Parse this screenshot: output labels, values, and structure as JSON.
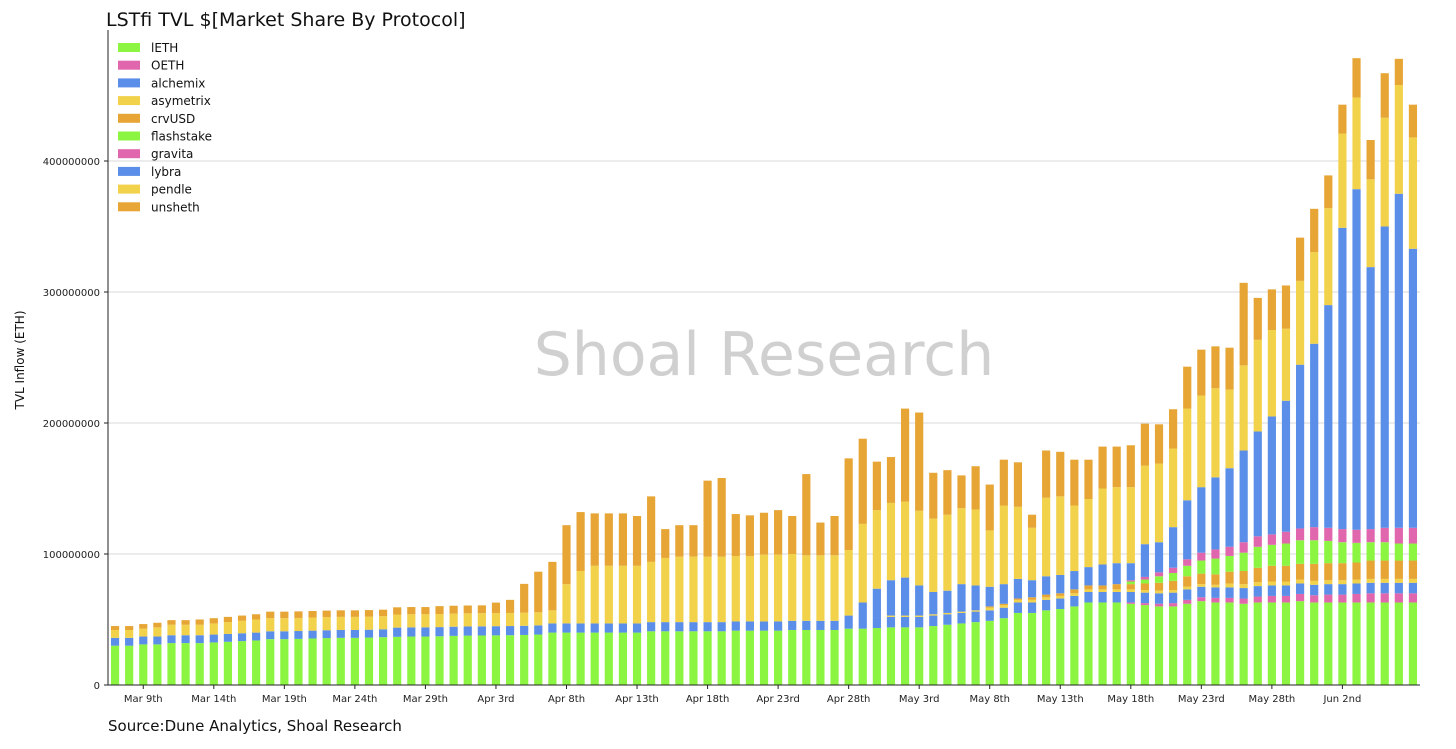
{
  "chart_data": {
    "type": "bar",
    "stacked": true,
    "title": "LSTfi TVL $[Market Share By Protocol]",
    "xlabel": "",
    "ylabel": "TVL Inflow (ETH)",
    "ylim": [
      0,
      500000000
    ],
    "yticks": [
      0,
      100000000,
      200000000,
      300000000,
      400000000
    ],
    "ytick_labels": [
      "0",
      "100000000",
      "200000000",
      "300000000",
      "400000000"
    ],
    "xtick_labels": [
      "Mar 9th",
      "Mar 14th",
      "Mar 19th",
      "Mar 24th",
      "Mar 29th",
      "Apr 3rd",
      "Apr 8th",
      "Apr 13th",
      "Apr 18th",
      "Apr 23rd",
      "Apr 28th",
      "May 3rd",
      "May 8th",
      "May 13th",
      "May 18th",
      "May 23rd",
      "May 28th",
      "Jun 2nd"
    ],
    "xtick_positions": [
      2,
      7,
      12,
      17,
      22,
      27,
      32,
      37,
      42,
      47,
      52,
      57,
      62,
      67,
      72,
      77,
      82,
      87
    ],
    "grid": "horizontal",
    "legend_position": "top-left",
    "watermark": "Shoal Research",
    "source": "Source:Dune Analytics, Shoal Research",
    "legend": [
      {
        "name": "lETH",
        "color": "#8cf542"
      },
      {
        "name": "OETH",
        "color": "#e066ad"
      },
      {
        "name": "alchemix",
        "color": "#5b8ee8"
      },
      {
        "name": "asymetrix",
        "color": "#f2d24b"
      },
      {
        "name": "crvUSD",
        "color": "#e6a535"
      },
      {
        "name": "flashstake",
        "color": "#8cf542"
      },
      {
        "name": "gravita",
        "color": "#e066ad"
      },
      {
        "name": "lybra",
        "color": "#5b8ee8"
      },
      {
        "name": "pendle",
        "color": "#f2d24b"
      },
      {
        "name": "unsheth",
        "color": "#e6a535"
      }
    ],
    "series": [
      {
        "name": "lETH",
        "color": "#8cf542",
        "values": [
          30000000,
          30000000,
          31000000,
          31000000,
          32000000,
          32000000,
          32000000,
          32500000,
          33000000,
          33500000,
          34000000,
          35000000,
          35000000,
          35200000,
          35500000,
          35800000,
          36000000,
          36000000,
          36200000,
          36500000,
          36800000,
          37000000,
          37000000,
          37200000,
          37500000,
          37700000,
          37800000,
          37900000,
          38000000,
          38200000,
          38500000,
          40000000,
          40000000,
          40000000,
          40000000,
          40000000,
          40000000,
          40000000,
          41000000,
          41000000,
          41000000,
          41000000,
          41000000,
          41000000,
          41500000,
          41500000,
          41500000,
          41500000,
          42000000,
          42000000,
          42000000,
          42000000,
          43000000,
          43000000,
          43500000,
          44000000,
          44000000,
          44000000,
          45000000,
          46000000,
          47000000,
          48000000,
          49000000,
          51000000,
          55000000,
          55000000,
          57000000,
          58000000,
          60000000,
          63000000,
          63000000,
          63000000,
          62000000,
          61000000,
          60000000,
          60000000,
          62000000,
          64000000,
          63000000,
          63000000,
          62000000,
          63000000,
          63000000,
          63000000,
          64000000,
          63000000,
          63000000,
          63000000,
          63000000,
          63000000,
          63000000,
          63000000,
          63000000
        ]
      },
      {
        "name": "OETH",
        "color": "#e066ad",
        "values": [
          0,
          0,
          0,
          0,
          0,
          0,
          0,
          0,
          0,
          0,
          0,
          0,
          0,
          0,
          0,
          0,
          0,
          0,
          0,
          0,
          0,
          0,
          0,
          0,
          0,
          0,
          0,
          0,
          0,
          0,
          0,
          0,
          0,
          0,
          0,
          0,
          0,
          0,
          0,
          0,
          0,
          0,
          0,
          0,
          0,
          0,
          0,
          0,
          0,
          0,
          0,
          0,
          0,
          0,
          0,
          0,
          0,
          0,
          0,
          0,
          0,
          0,
          0,
          0,
          0,
          0,
          0,
          0,
          0,
          0,
          0,
          0,
          1000000,
          1500000,
          2000000,
          2500000,
          3000000,
          3000000,
          3500000,
          3500000,
          4000000,
          4500000,
          5000000,
          5000000,
          5500000,
          5500000,
          6000000,
          6000000,
          6500000,
          7000000,
          7000000,
          7000000,
          7000000
        ]
      },
      {
        "name": "alchemix",
        "color": "#5b8ee8",
        "values": [
          6000000,
          6000000,
          6000000,
          6000000,
          6000000,
          6000000,
          6000000,
          6000000,
          6000000,
          6000000,
          6000000,
          6000000,
          6000000,
          6000000,
          6000000,
          6000000,
          6000000,
          6000000,
          6000000,
          6000000,
          7000000,
          7000000,
          7000000,
          7000000,
          7000000,
          7000000,
          7000000,
          7000000,
          7000000,
          7000000,
          7000000,
          7000000,
          7000000,
          7000000,
          7000000,
          7000000,
          7000000,
          7000000,
          7000000,
          7000000,
          7000000,
          7000000,
          7000000,
          7000000,
          7000000,
          7000000,
          7000000,
          7000000,
          7000000,
          7000000,
          7000000,
          7000000,
          7000000,
          7000000,
          8000000,
          8000000,
          8000000,
          8000000,
          8000000,
          8000000,
          8000000,
          8000000,
          8000000,
          8000000,
          8000000,
          8000000,
          8000000,
          8000000,
          8000000,
          8000000,
          8000000,
          8000000,
          8000000,
          8000000,
          8000000,
          8000000,
          8000000,
          8000000,
          8000000,
          8000000,
          8000000,
          8000000,
          8000000,
          8000000,
          8000000,
          8000000,
          8000000,
          8000000,
          8000000,
          8000000,
          8000000,
          8000000,
          8000000
        ]
      },
      {
        "name": "asymetrix",
        "color": "#f2d24b",
        "values": [
          0,
          0,
          0,
          0,
          0,
          0,
          0,
          0,
          0,
          0,
          0,
          0,
          0,
          0,
          0,
          0,
          0,
          0,
          0,
          0,
          0,
          0,
          0,
          0,
          0,
          0,
          0,
          0,
          0,
          0,
          0,
          0,
          0,
          0,
          0,
          0,
          0,
          0,
          0,
          0,
          0,
          0,
          0,
          0,
          0,
          0,
          0,
          0,
          0,
          0,
          0,
          0,
          0,
          0,
          0,
          1000000,
          1000000,
          1000000,
          1000000,
          1000000,
          1000000,
          1000000,
          2000000,
          2000000,
          2000000,
          2000000,
          2000000,
          2000000,
          2000000,
          2000000,
          2000000,
          2000000,
          2000000,
          2000000,
          2000000,
          2000000,
          2000000,
          2000000,
          2000000,
          3000000,
          3000000,
          3000000,
          3000000,
          3000000,
          3000000,
          3000000,
          3000000,
          3000000,
          3000000,
          3000000,
          3000000,
          3000000,
          3000000
        ]
      },
      {
        "name": "crvUSD",
        "color": "#e6a535",
        "values": [
          0,
          0,
          0,
          0,
          0,
          0,
          0,
          0,
          0,
          0,
          0,
          0,
          0,
          0,
          0,
          0,
          0,
          0,
          0,
          0,
          0,
          0,
          0,
          0,
          0,
          0,
          0,
          0,
          0,
          0,
          0,
          0,
          0,
          0,
          0,
          0,
          0,
          0,
          0,
          0,
          0,
          0,
          0,
          0,
          0,
          0,
          0,
          0,
          0,
          0,
          0,
          0,
          0,
          0,
          0,
          0,
          0,
          0,
          0,
          0,
          0,
          0,
          1000000,
          1000000,
          1000000,
          2000000,
          2000000,
          2000000,
          3000000,
          3000000,
          3000000,
          4000000,
          4000000,
          5000000,
          6000000,
          7000000,
          8000000,
          8000000,
          8000000,
          9000000,
          10000000,
          11000000,
          12000000,
          12000000,
          12000000,
          13000000,
          13000000,
          13000000,
          13000000,
          14000000,
          14000000,
          14000000,
          14000000
        ]
      },
      {
        "name": "flashstake",
        "color": "#8cf542",
        "values": [
          0,
          0,
          0,
          0,
          0,
          0,
          0,
          0,
          0,
          0,
          0,
          0,
          0,
          0,
          0,
          0,
          0,
          0,
          0,
          0,
          0,
          0,
          0,
          0,
          0,
          0,
          0,
          0,
          0,
          0,
          0,
          0,
          0,
          0,
          0,
          0,
          0,
          0,
          0,
          0,
          0,
          0,
          0,
          0,
          0,
          0,
          0,
          0,
          0,
          0,
          0,
          0,
          0,
          0,
          0,
          0,
          0,
          0,
          0,
          0,
          0,
          0,
          0,
          0,
          0,
          0,
          0,
          0,
          0,
          0,
          0,
          0,
          2000000,
          3000000,
          5000000,
          6000000,
          8000000,
          10000000,
          12000000,
          12000000,
          14000000,
          16000000,
          16000000,
          17000000,
          18000000,
          18000000,
          17000000,
          16000000,
          15000000,
          14000000,
          14000000,
          13000000,
          13000000
        ]
      },
      {
        "name": "gravita",
        "color": "#e066ad",
        "values": [
          0,
          0,
          0,
          0,
          0,
          0,
          0,
          0,
          0,
          0,
          0,
          0,
          0,
          0,
          0,
          0,
          0,
          0,
          0,
          0,
          0,
          0,
          0,
          0,
          0,
          0,
          0,
          0,
          0,
          0,
          0,
          0,
          0,
          0,
          0,
          0,
          0,
          0,
          0,
          0,
          0,
          0,
          0,
          0,
          0,
          0,
          0,
          0,
          0,
          0,
          0,
          0,
          0,
          0,
          0,
          0,
          0,
          0,
          0,
          0,
          0,
          0,
          0,
          0,
          0,
          0,
          0,
          0,
          0,
          0,
          0,
          0,
          1000000,
          2000000,
          3000000,
          4000000,
          5000000,
          6000000,
          7000000,
          7000000,
          8000000,
          8000000,
          8000000,
          9000000,
          9000000,
          10000000,
          10000000,
          10000000,
          10000000,
          10000000,
          11000000,
          12000000,
          12000000
        ]
      },
      {
        "name": "lybra",
        "color": "#5b8ee8",
        "values": [
          0,
          0,
          0,
          0,
          0,
          0,
          0,
          0,
          0,
          0,
          0,
          0,
          0,
          0,
          0,
          0,
          0,
          0,
          0,
          0,
          0,
          0,
          0,
          0,
          0,
          0,
          0,
          0,
          0,
          0,
          0,
          0,
          0,
          0,
          0,
          0,
          0,
          0,
          0,
          0,
          0,
          0,
          0,
          0,
          0,
          0,
          0,
          0,
          0,
          0,
          0,
          0,
          3000000,
          13000000,
          22000000,
          27000000,
          29000000,
          23000000,
          17000000,
          17000000,
          21000000,
          19000000,
          15000000,
          15000000,
          15000000,
          13000000,
          14000000,
          14000000,
          14000000,
          14000000,
          16000000,
          16000000,
          13000000,
          25000000,
          23000000,
          31000000,
          45000000,
          50000000,
          55000000,
          60000000,
          70000000,
          80000000,
          90000000,
          100000000,
          125000000,
          140000000,
          170000000,
          230000000,
          260000000,
          200000000,
          230000000,
          255000000,
          213000000
        ]
      },
      {
        "name": "pendle",
        "color": "#f2d24b",
        "values": [
          6000000,
          6000000,
          6000000,
          7000000,
          8000000,
          8000000,
          8000000,
          8500000,
          9000000,
          9500000,
          10000000,
          10000000,
          10000000,
          10000000,
          10000000,
          10000000,
          10000000,
          10000000,
          10000000,
          10000000,
          10000000,
          10000000,
          10000000,
          10000000,
          10000000,
          10000000,
          10000000,
          10000000,
          10000000,
          10000000,
          10000000,
          10000000,
          30000000,
          40000000,
          44000000,
          44000000,
          44000000,
          44000000,
          46000000,
          49000000,
          50000000,
          50000000,
          50000000,
          50000000,
          50000000,
          50000000,
          51000000,
          51000000,
          51000000,
          50000000,
          50000000,
          50000000,
          50000000,
          60000000,
          60000000,
          59000000,
          58000000,
          57000000,
          56000000,
          58000000,
          58000000,
          58000000,
          43000000,
          60000000,
          55000000,
          40000000,
          60000000,
          60000000,
          50000000,
          52000000,
          58000000,
          58000000,
          58000000,
          60000000,
          60000000,
          60000000,
          70000000,
          70000000,
          68000000,
          60000000,
          65000000,
          70000000,
          66000000,
          55000000,
          64000000,
          70000000,
          74000000,
          72000000,
          70000000,
          67000000,
          83000000,
          83000000,
          85000000
        ]
      },
      {
        "name": "unsheth",
        "color": "#e6a535",
        "values": [
          3000000,
          3000000,
          3500000,
          3500000,
          3500000,
          3500000,
          4000000,
          4000000,
          4000000,
          4000000,
          4000000,
          5000000,
          5000000,
          5000000,
          5000000,
          5000000,
          5000000,
          5000000,
          5000000,
          5000000,
          5500000,
          5500000,
          5500000,
          6000000,
          6000000,
          6000000,
          6000000,
          8000000,
          10000000,
          22000000,
          31000000,
          37000000,
          45000000,
          45000000,
          40000000,
          40000000,
          40000000,
          38000000,
          50000000,
          22000000,
          24000000,
          24000000,
          58000000,
          60000000,
          32000000,
          31000000,
          32000000,
          34000000,
          29000000,
          62000000,
          25000000,
          30000000,
          70000000,
          65000000,
          37000000,
          35000000,
          71000000,
          75000000,
          35000000,
          34000000,
          25000000,
          33000000,
          35000000,
          35000000,
          34000000,
          10000000,
          36000000,
          34000000,
          35000000,
          30000000,
          32000000,
          31000000,
          32000000,
          32000000,
          30000000,
          30000000,
          32000000,
          35000000,
          32000000,
          32000000,
          63000000,
          32000000,
          31000000,
          33000000,
          33000000,
          33000000,
          25000000,
          22000000,
          30000000,
          30000000,
          34000000,
          20000000,
          25000000
        ]
      }
    ]
  }
}
